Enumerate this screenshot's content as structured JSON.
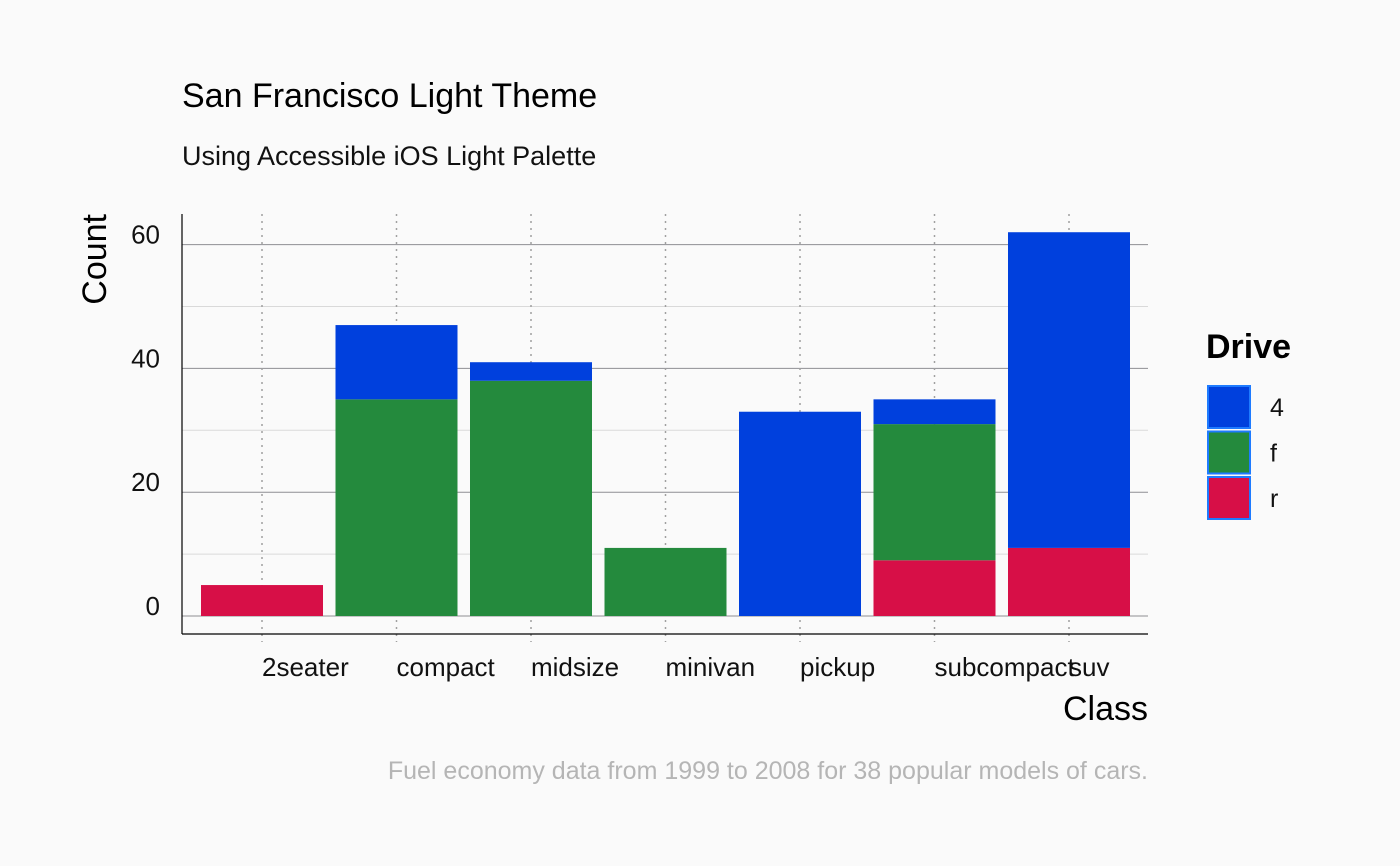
{
  "chart_data": {
    "type": "bar",
    "stacked": true,
    "title": "San Francisco Light Theme",
    "subtitle": "Using Accessible iOS Light Palette",
    "caption": "Fuel economy data from 1999 to 2008 for 38 popular models of cars.",
    "xlabel": "Class",
    "ylabel": "Count",
    "ylim": [
      0,
      65
    ],
    "yticks": [
      0,
      20,
      40,
      60
    ],
    "grid": true,
    "legend_position": "right",
    "legend_title": "Drive",
    "categories": [
      "2seater",
      "compact",
      "midsize",
      "minivan",
      "pickup",
      "subcompact",
      "suv"
    ],
    "series": [
      {
        "name": "4",
        "color": "#0040dd",
        "values": [
          0,
          12,
          3,
          0,
          33,
          4,
          51
        ]
      },
      {
        "name": "f",
        "color": "#248a3d",
        "values": [
          0,
          35,
          38,
          11,
          0,
          22,
          0
        ]
      },
      {
        "name": "r",
        "color": "#d70f47",
        "values": [
          5,
          0,
          0,
          0,
          0,
          9,
          11
        ]
      }
    ],
    "stack_order_bottom_to_top": [
      "r",
      "f",
      "4"
    ]
  },
  "colors": {
    "background": "#fafafa",
    "grid_major": "#8e8e93",
    "grid_minor": "#d9d9d9",
    "grid_dotted": "#a0a0a0",
    "axis": "#000000",
    "legend_key_border": "#1e7bff"
  }
}
